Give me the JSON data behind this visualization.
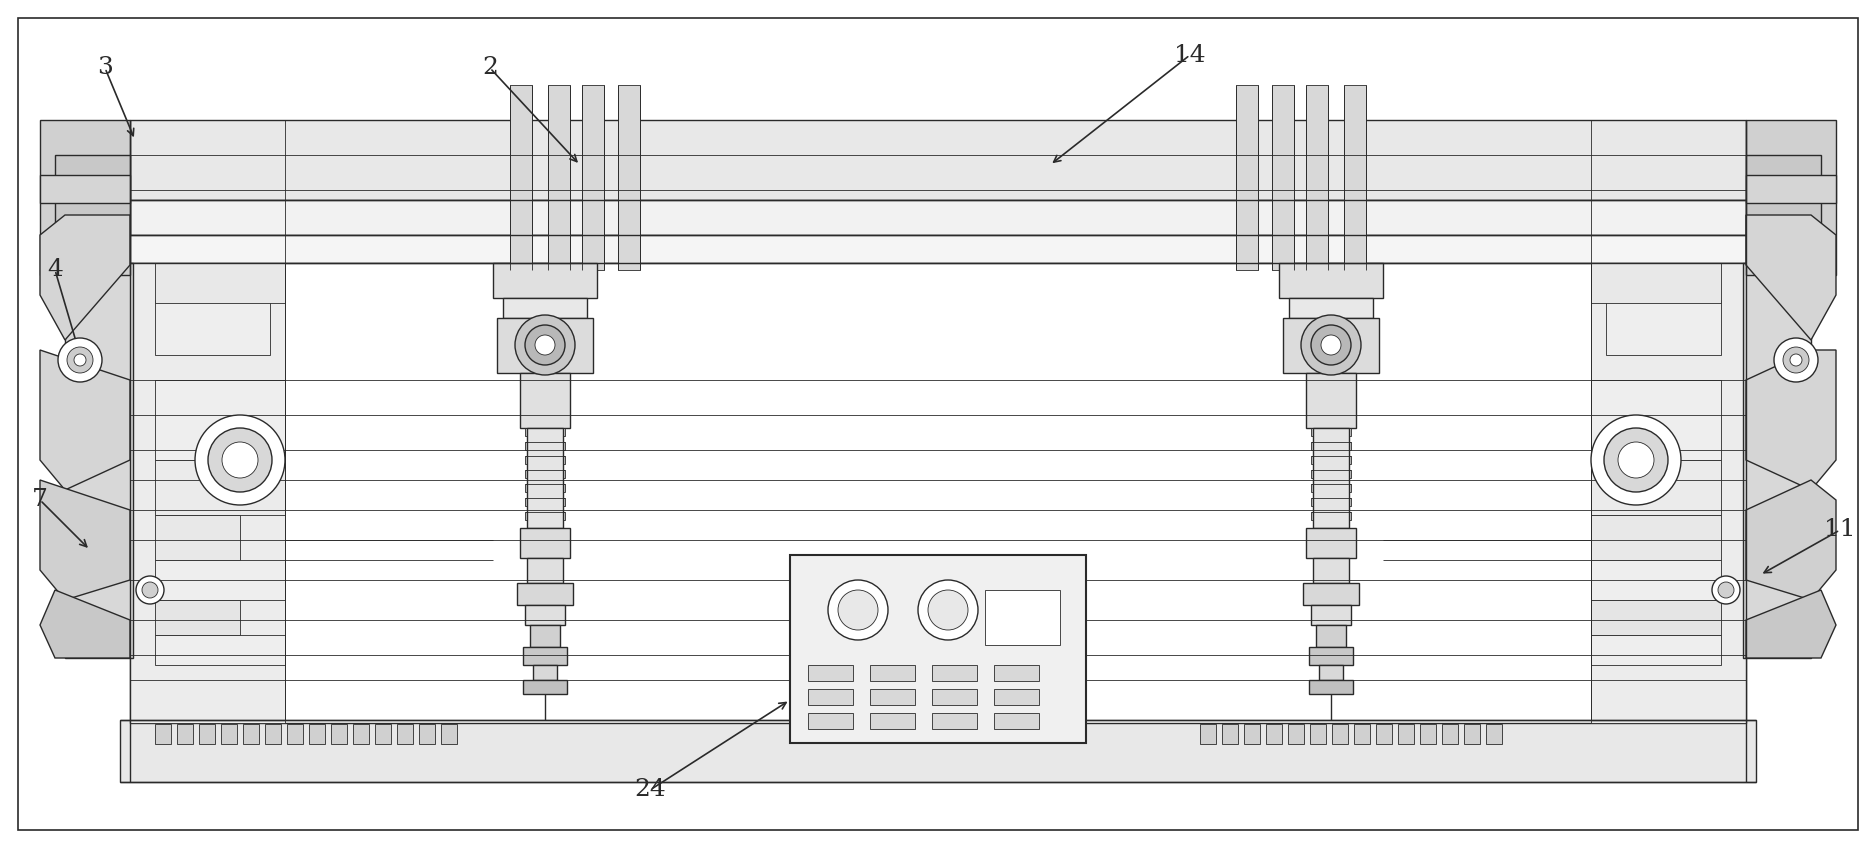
{
  "background_color": "#ffffff",
  "line_color": "#2a2a2a",
  "lw": 1.0,
  "tlw": 0.6,
  "figsize": [
    18.76,
    8.48
  ],
  "dpi": 100
}
